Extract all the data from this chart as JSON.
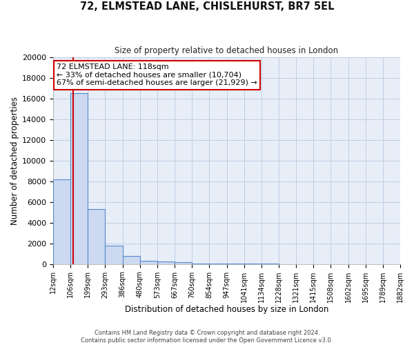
{
  "title": "72, ELMSTEAD LANE, CHISLEHURST, BR7 5EL",
  "subtitle": "Size of property relative to detached houses in London",
  "xlabel": "Distribution of detached houses by size in London",
  "ylabel": "Number of detached properties",
  "bin_edges": [
    12,
    105,
    198,
    291,
    384,
    477,
    570,
    663,
    756,
    849,
    942,
    1035,
    1128,
    1221,
    1314,
    1407,
    1500,
    1593,
    1686,
    1779,
    1872
  ],
  "bin_labels": [
    "12sqm",
    "106sqm",
    "199sqm",
    "293sqm",
    "386sqm",
    "480sqm",
    "573sqm",
    "667sqm",
    "760sqm",
    "854sqm",
    "947sqm",
    "1041sqm",
    "1134sqm",
    "1228sqm",
    "1321sqm",
    "1415sqm",
    "1508sqm",
    "1602sqm",
    "1695sqm",
    "1789sqm",
    "1882sqm"
  ],
  "bar_heights": [
    8200,
    16500,
    5300,
    1750,
    750,
    300,
    250,
    150,
    50,
    50,
    30,
    20,
    10,
    5,
    3,
    2,
    1,
    1,
    1,
    1
  ],
  "bar_color": "#ccd9f0",
  "bar_edge_color": "#5588cc",
  "property_size": 118,
  "vline_color": "#cc0000",
  "ylim": [
    0,
    20000
  ],
  "annotation_title": "72 ELMSTEAD LANE: 118sqm",
  "annotation_line1": "← 33% of detached houses are smaller (10,704)",
  "annotation_line2": "67% of semi-detached houses are larger (21,929) →",
  "annotation_box_color": "#ffffff",
  "annotation_box_edge": "#cc0000",
  "footer_line1": "Contains HM Land Registry data © Crown copyright and database right 2024.",
  "footer_line2": "Contains public sector information licensed under the Open Government Licence v3.0.",
  "background_color": "#ffffff",
  "plot_bg_color": "#e8eef8",
  "grid_color": "#b8c8e0"
}
